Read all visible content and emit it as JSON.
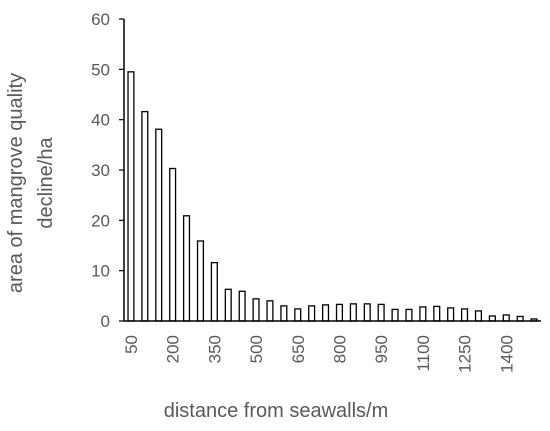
{
  "chart_data": {
    "type": "bar",
    "xlabel": "distance from seawalls/m",
    "ylabel_lines": [
      "area of mangrove quality",
      "decline/ha"
    ],
    "ylim": [
      0,
      60
    ],
    "yticks": [
      0,
      10,
      20,
      30,
      40,
      50,
      60
    ],
    "categories": [
      50,
      100,
      150,
      200,
      250,
      300,
      350,
      400,
      450,
      500,
      550,
      600,
      650,
      700,
      750,
      800,
      850,
      900,
      950,
      1000,
      1050,
      1100,
      1150,
      1200,
      1250,
      1300,
      1350,
      1400,
      1450,
      1500
    ],
    "visible_category_labels": [
      50,
      200,
      350,
      500,
      650,
      800,
      950,
      1100,
      1250,
      1400
    ],
    "values": [
      49.5,
      41.6,
      38.1,
      30.3,
      20.9,
      15.9,
      11.6,
      6.3,
      5.9,
      4.4,
      4.0,
      3.0,
      2.4,
      3.0,
      3.2,
      3.3,
      3.4,
      3.4,
      3.3,
      2.3,
      2.3,
      2.8,
      2.9,
      2.6,
      2.4,
      2.0,
      1.0,
      1.2,
      0.9,
      0.4
    ],
    "bar_fill": "#ffffff",
    "bar_stroke": "#000000",
    "axis_color": "#000000",
    "text_color": "#595959",
    "grid": false,
    "legend": "none"
  }
}
